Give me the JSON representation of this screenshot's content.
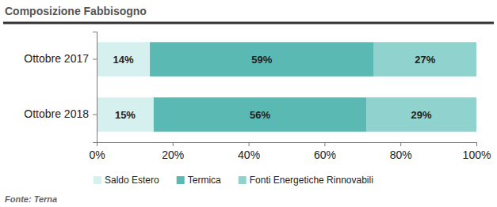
{
  "chart_data": {
    "type": "bar",
    "orientation": "horizontal",
    "stacked": true,
    "data_labels": true,
    "title": "Composizione Fabbisogno",
    "source": "Fonte: Terna",
    "categories": [
      "Ottobre 2017",
      "Ottobre 2018"
    ],
    "series": [
      {
        "name": "Saldo Estero",
        "color": "#d6efef",
        "values": [
          14,
          15
        ],
        "value_labels": [
          "14%",
          "15%"
        ]
      },
      {
        "name": "Termica",
        "color": "#5bb9b4",
        "values": [
          59,
          56
        ],
        "value_labels": [
          "59%",
          "56%"
        ]
      },
      {
        "name": "Fonti Energetiche Rinnovabili",
        "color": "#8fd2ce",
        "values": [
          27,
          29
        ],
        "value_labels": [
          "27%",
          "29%"
        ]
      }
    ],
    "xlim": [
      0,
      100
    ],
    "xticks": [
      {
        "value": 0,
        "label": "0%"
      },
      {
        "value": 20,
        "label": "20%"
      },
      {
        "value": 40,
        "label": "40%"
      },
      {
        "value": 60,
        "label": "60%"
      },
      {
        "value": 80,
        "label": "80%"
      },
      {
        "value": 100,
        "label": "100%"
      }
    ],
    "grid": false,
    "legend": "bottom"
  }
}
